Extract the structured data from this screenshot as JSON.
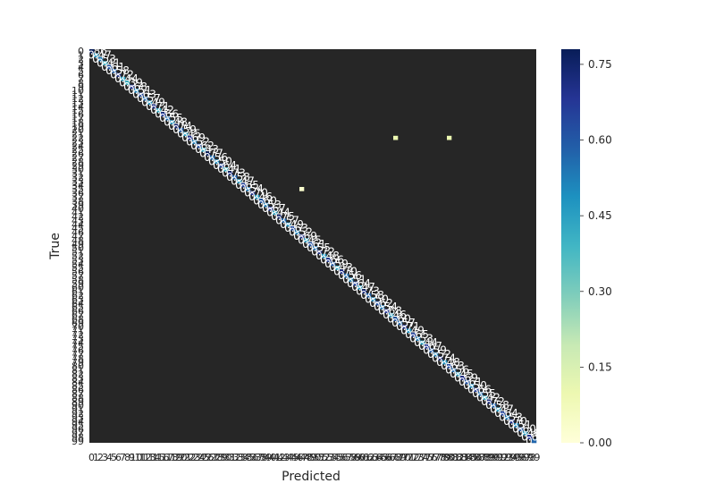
{
  "chart_data": {
    "type": "heatmap",
    "title": "",
    "xlabel": "Predicted",
    "ylabel": "True",
    "n_classes": 100,
    "colormap": [
      "#ffffd9",
      "#edf8b1",
      "#c7e9b4",
      "#7fcdbb",
      "#41b6c4",
      "#1d91c0",
      "#225ea8",
      "#253494",
      "#081d58"
    ],
    "vmin": 0.0,
    "vmax": 0.78,
    "colorbar_ticks": [
      "0.00",
      "0.15",
      "0.30",
      "0.45",
      "0.60",
      "0.75"
    ],
    "colorbar_tick_values": [
      0.0,
      0.15,
      0.3,
      0.45,
      0.6,
      0.75
    ],
    "diagonal_values": [
      0.86,
      0.47,
      0.53,
      0.41,
      0.61,
      0.58,
      0.72,
      0.44,
      0.39,
      0.68,
      0.51,
      0.63,
      0.57,
      0.49,
      0.71,
      0.42,
      0.66,
      0.55,
      0.48,
      0.74,
      0.59,
      0.45,
      0.69,
      0.52,
      0.62,
      0.43,
      0.77,
      0.56,
      0.5,
      0.64,
      0.41,
      0.73,
      0.58,
      0.47,
      0.65,
      0.54,
      0.7,
      0.46,
      0.6,
      0.53,
      0.67,
      0.44,
      0.75,
      0.57,
      0.49,
      0.63,
      0.52,
      0.69,
      0.45,
      0.61,
      0.55,
      0.72,
      0.48,
      0.66,
      0.59,
      0.43,
      0.7,
      0.56,
      0.51,
      0.64,
      0.47,
      0.73,
      0.58,
      0.5,
      0.62,
      0.54,
      0.68,
      0.46,
      0.6,
      0.57,
      0.71,
      0.49,
      0.65,
      0.53,
      0.44,
      0.67,
      0.59,
      0.52,
      0.74,
      0.48,
      0.63,
      0.56,
      0.45,
      0.69,
      0.61,
      0.5,
      0.66,
      0.55,
      0.42,
      0.72,
      0.58,
      0.47,
      0.64,
      0.53,
      0.7,
      0.51,
      0.6,
      0.46,
      0.68,
      0.57
    ],
    "visible_annotations": [
      "0.86",
      "0.47",
      "0.53",
      "0.41",
      "0.61",
      "0.58",
      "0.72",
      "0.44",
      "0.39",
      "0.68",
      "0.51",
      "0.63",
      "0.57",
      "0.49",
      "0.71",
      "0.42",
      "0.66",
      "0.55",
      "0.48",
      "0.74",
      "0.59",
      "0.45",
      "0.69",
      "0.52",
      "0.62",
      "0.43",
      "0.77",
      "0.56",
      "0.50",
      "0.64",
      "0.41",
      "0.73",
      "0.58",
      "0.47",
      "0.65",
      "0.54",
      "0.70",
      "0.46",
      "0.60",
      "0.53",
      "0.67",
      "0.44",
      "0.75",
      "0.57",
      "0.49",
      "0.63",
      "0.52",
      "0.69",
      "0.45",
      "0.61",
      "0.55",
      "0.72",
      "0.48",
      "0.66",
      "0.59",
      "0.43",
      "0.70",
      "0.56",
      "0.51",
      "0.64",
      "0.47",
      "0.73",
      "0.58",
      "0.50",
      "0.62",
      "0.54",
      "0.68",
      "0.46",
      "0.60",
      "0.57",
      "0.71",
      "0.49",
      "0.65",
      "0.53",
      "0.44",
      "0.67",
      "0.59",
      "0.52",
      "0.74",
      "0.48",
      "0.63",
      "0.56",
      "0.45",
      "0.69",
      "0.61",
      "0.50",
      "0.66",
      "0.55",
      "0.42",
      "0.72",
      "0.58",
      "0.47",
      "0.64",
      "0.53",
      "0.70",
      "0.51",
      "0.60",
      "0.46",
      "0.68",
      "0.57"
    ],
    "off_diagonal_notable": [
      {
        "row": 22,
        "col": 68,
        "value": 0.1
      },
      {
        "row": 22,
        "col": 80,
        "value": 0.1
      },
      {
        "row": 35,
        "col": 47,
        "value": 0.03
      }
    ],
    "annotation_color": "#ffffff",
    "background_fill": "#262626",
    "grid": false,
    "colorbar": "right"
  }
}
